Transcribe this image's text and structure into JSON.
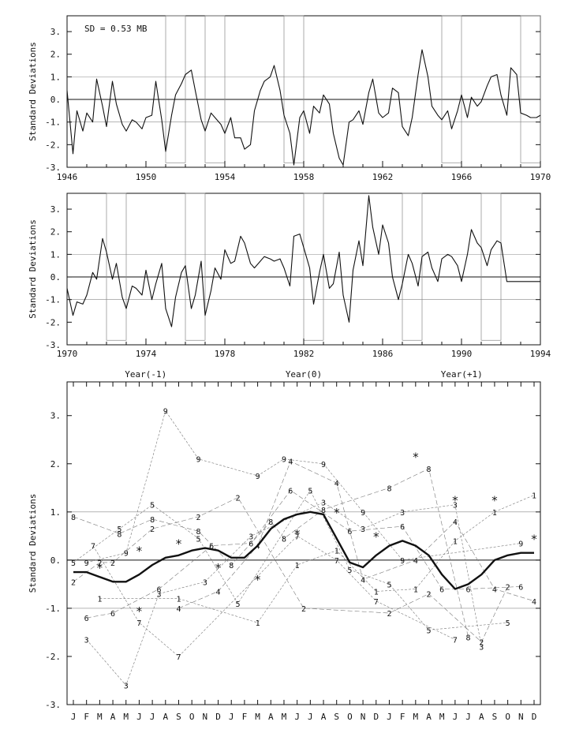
{
  "chart_data": [
    {
      "type": "line",
      "annotation": "SD = 0.53 MB",
      "ylabel": "Standard Deviations",
      "xlim": [
        1946,
        1970
      ],
      "ylim": [
        -3,
        3.7
      ],
      "xticks": [
        "1946",
        "1950",
        "1954",
        "1958",
        "1962",
        "1966",
        "1970"
      ],
      "yticks": [
        "3.",
        "2.",
        "1.",
        "0.",
        "-1.",
        "-2.",
        "-3."
      ],
      "reference_lines": [
        1,
        -1
      ],
      "event_windows": [
        [
          1951.0,
          1952.0
        ],
        [
          1953.0,
          1954.0
        ],
        [
          1957.0,
          1958.0
        ],
        [
          1965.0,
          1966.0
        ],
        [
          1969.0,
          1970.0
        ]
      ],
      "series": [
        {
          "x": [
            1946.0,
            1946.3,
            1946.5,
            1946.8,
            1947.0,
            1947.3,
            1947.5,
            1947.8,
            1948.0,
            1948.3,
            1948.5,
            1948.8,
            1949.0,
            1949.3,
            1949.5,
            1949.8,
            1950.0,
            1950.3,
            1950.5,
            1950.8,
            1951.0,
            1951.3,
            1951.5,
            1951.8,
            1952.0,
            1952.3,
            1952.5,
            1952.8,
            1953.0,
            1953.3,
            1953.5,
            1953.8,
            1954.0,
            1954.3,
            1954.5,
            1954.8,
            1955.0,
            1955.3,
            1955.5,
            1955.8,
            1956.0,
            1956.3,
            1956.5,
            1956.8,
            1957.0,
            1957.3,
            1957.5,
            1957.8,
            1958.0,
            1958.3,
            1958.5,
            1958.8,
            1959.0,
            1959.3,
            1959.5,
            1959.8,
            1960.0,
            1960.3,
            1960.5,
            1960.8,
            1961.0,
            1961.3,
            1961.5,
            1961.8,
            1962.0,
            1962.3,
            1962.5,
            1962.8,
            1963.0,
            1963.3,
            1963.5,
            1963.8,
            1964.0,
            1964.3,
            1964.5,
            1964.8,
            1965.0,
            1965.3,
            1965.5,
            1965.8,
            1966.0,
            1966.3,
            1966.5,
            1966.8,
            1967.0,
            1967.3,
            1967.5,
            1967.8,
            1968.0,
            1968.3,
            1968.5,
            1968.8,
            1969.0,
            1969.3,
            1969.5,
            1969.8,
            1970.0
          ],
          "values": [
            0.4,
            -2.4,
            -0.5,
            -1.4,
            -0.6,
            -1.0,
            0.9,
            -0.3,
            -1.2,
            0.8,
            -0.2,
            -1.1,
            -1.4,
            -0.9,
            -1.0,
            -1.3,
            -0.8,
            -0.7,
            0.8,
            -0.9,
            -2.3,
            -0.7,
            0.2,
            0.7,
            1.1,
            1.3,
            0.4,
            -0.9,
            -1.4,
            -0.6,
            -0.8,
            -1.1,
            -1.5,
            -0.8,
            -1.7,
            -1.7,
            -2.2,
            -2.0,
            -0.5,
            0.4,
            0.8,
            1.0,
            1.5,
            0.4,
            -0.7,
            -1.5,
            -2.9,
            -0.8,
            -0.5,
            -1.5,
            -0.3,
            -0.6,
            0.2,
            -0.2,
            -1.5,
            -2.6,
            -2.9,
            -1.0,
            -0.9,
            -0.5,
            -1.1,
            0.3,
            0.9,
            -0.6,
            -0.8,
            -0.6,
            0.5,
            0.3,
            -1.2,
            -1.6,
            -0.8,
            1.1,
            2.2,
            1.0,
            -0.3,
            -0.7,
            -0.9,
            -0.5,
            -1.3,
            -0.5,
            0.2,
            -0.8,
            0.1,
            -0.3,
            -0.1,
            0.6,
            1.0,
            1.1,
            0.2,
            -0.7,
            1.4,
            1.1,
            -0.6,
            -0.7,
            -0.8,
            -0.8,
            -0.7
          ]
        }
      ]
    },
    {
      "type": "line",
      "ylabel": "Standard Deviations",
      "xlim": [
        1970,
        1994
      ],
      "ylim": [
        -3,
        3.7
      ],
      "xticks": [
        "1970",
        "1974",
        "1978",
        "1982",
        "1986",
        "1990",
        "1994"
      ],
      "yticks": [
        "3.",
        "2.",
        "1.",
        "0.",
        "-1.",
        "-2.",
        "-3."
      ],
      "reference_lines": [
        1,
        -1
      ],
      "event_windows": [
        [
          1972.0,
          1973.0
        ],
        [
          1976.0,
          1977.0
        ],
        [
          1982.0,
          1983.0
        ],
        [
          1987.0,
          1988.0
        ],
        [
          1991.0,
          1992.0
        ]
      ],
      "series": [
        {
          "x": [
            1970.0,
            1970.3,
            1970.5,
            1970.8,
            1971.0,
            1971.3,
            1971.5,
            1971.8,
            1972.0,
            1972.3,
            1972.5,
            1972.8,
            1973.0,
            1973.3,
            1973.5,
            1973.8,
            1974.0,
            1974.3,
            1974.5,
            1974.8,
            1975.0,
            1975.3,
            1975.5,
            1975.8,
            1976.0,
            1976.3,
            1976.5,
            1976.8,
            1977.0,
            1977.3,
            1977.5,
            1977.8,
            1978.0,
            1978.3,
            1978.5,
            1978.8,
            1979.0,
            1979.3,
            1979.5,
            1979.8,
            1980.0,
            1980.3,
            1980.5,
            1980.8,
            1981.0,
            1981.3,
            1981.5,
            1981.8,
            1982.0,
            1982.3,
            1982.5,
            1982.8,
            1983.0,
            1983.3,
            1983.5,
            1983.8,
            1984.0,
            1984.3,
            1984.5,
            1984.8,
            1985.0,
            1985.3,
            1985.5,
            1985.8,
            1986.0,
            1986.3,
            1986.5,
            1986.8,
            1987.0,
            1987.3,
            1987.5,
            1987.8,
            1988.0,
            1988.3,
            1988.5,
            1988.8,
            1989.0,
            1989.3,
            1989.5,
            1989.8,
            1990.0,
            1990.3,
            1990.5,
            1990.8,
            1991.0,
            1991.3,
            1991.5,
            1991.8,
            1992.0,
            1992.3,
            1992.5,
            1992.8,
            1993.0,
            1993.3,
            1993.5,
            1993.8,
            1994.0
          ],
          "values": [
            -0.5,
            -1.7,
            -1.1,
            -1.2,
            -0.8,
            0.2,
            -0.1,
            1.7,
            1.1,
            -0.1,
            0.6,
            -0.9,
            -1.4,
            -0.4,
            -0.5,
            -0.8,
            0.3,
            -1.0,
            -0.3,
            0.6,
            -1.4,
            -2.2,
            -0.9,
            0.2,
            0.5,
            -1.4,
            -0.8,
            0.7,
            -1.7,
            -0.6,
            0.4,
            -0.1,
            1.2,
            0.6,
            0.7,
            1.8,
            1.5,
            0.6,
            0.4,
            0.7,
            0.9,
            0.8,
            0.7,
            0.8,
            0.4,
            -0.4,
            1.8,
            1.9,
            1.3,
            0.4,
            -1.2,
            0.2,
            1.0,
            -0.5,
            -0.3,
            1.1,
            -0.8,
            -2.0,
            0.3,
            1.6,
            0.5,
            3.6,
            2.2,
            1.0,
            2.3,
            1.5,
            0.0,
            -1.0,
            -0.3,
            1.0,
            0.6,
            -0.4,
            0.9,
            1.1,
            0.4,
            -0.2,
            0.8,
            1.0,
            0.9,
            0.5,
            -0.2,
            1.0,
            2.1,
            1.5,
            1.3,
            0.5,
            1.2,
            1.6,
            1.5,
            -0.2,
            -0.2,
            -0.2,
            -0.2,
            -0.2,
            -0.2,
            -0.2,
            -0.2
          ]
        }
      ]
    },
    {
      "type": "line",
      "ylabel": "Standard Deviations",
      "top_labels": [
        "Year(-1)",
        "Year(0)",
        "Year(+1)"
      ],
      "ylim": [
        -3,
        3.7
      ],
      "yticks": [
        "3.",
        "2.",
        "1.",
        "0.",
        "-1.",
        "-2.",
        "-3."
      ],
      "categories": [
        "J",
        "F",
        "M",
        "A",
        "M",
        "J",
        "J",
        "A",
        "S",
        "O",
        "N",
        "D",
        "J",
        "F",
        "M",
        "A",
        "M",
        "J",
        "J",
        "A",
        "S",
        "O",
        "N",
        "D",
        "J",
        "F",
        "M",
        "A",
        "M",
        "J",
        "J",
        "A",
        "S",
        "O",
        "N",
        "D"
      ],
      "reference_lines": [
        1,
        -1
      ],
      "composite_mean": [
        -0.25,
        -0.25,
        -0.35,
        -0.45,
        -0.45,
        -0.3,
        -0.1,
        0.05,
        0.1,
        0.2,
        0.25,
        0.2,
        0.05,
        0.05,
        0.3,
        0.65,
        0.85,
        0.95,
        1.0,
        0.95,
        0.45,
        -0.05,
        -0.15,
        0.1,
        0.3,
        0.4,
        0.3,
        0.1,
        -0.3,
        -0.6,
        -0.5,
        -0.3,
        0.0,
        0.1,
        0.15,
        0.15
      ],
      "marker_points": [
        [
          2,
          -0.1
        ],
        [
          5,
          0.25
        ],
        [
          5,
          -1.0
        ],
        [
          8,
          0.4
        ],
        [
          11,
          -0.1
        ],
        [
          14,
          -0.35
        ],
        [
          17,
          0.6
        ],
        [
          20,
          1.05
        ],
        [
          23,
          0.55
        ],
        [
          26,
          2.2
        ],
        [
          29,
          1.3
        ],
        [
          32,
          1.3
        ],
        [
          35,
          0.5
        ]
      ],
      "series_labels": [
        [
          "5",
          0,
          -0.05
        ],
        [
          "9",
          1,
          -0.05
        ],
        [
          "2",
          2,
          -0.05
        ],
        [
          "7",
          1.5,
          0.3
        ],
        [
          "6",
          1,
          -1.2
        ],
        [
          "3",
          1,
          -1.65
        ],
        [
          "1",
          2,
          -0.8
        ],
        [
          "8",
          0,
          0.9
        ],
        [
          "2",
          0,
          -0.45
        ],
        [
          "6",
          3,
          -1.1
        ],
        [
          "7",
          5,
          -1.3
        ],
        [
          "9",
          4,
          0.15
        ],
        [
          "8",
          3.5,
          0.55
        ],
        [
          "5",
          3.5,
          0.65
        ],
        [
          "2",
          3,
          -0.05
        ],
        [
          "3",
          4,
          -2.6
        ],
        [
          "9",
          7,
          3.1
        ],
        [
          "5",
          6,
          1.15
        ],
        [
          "8",
          6,
          0.85
        ],
        [
          "2",
          6,
          0.65
        ],
        [
          "6",
          6.5,
          -0.6
        ],
        [
          "3",
          6.5,
          -0.7
        ],
        [
          "1",
          8,
          -0.8
        ],
        [
          "4",
          8,
          -1.0
        ],
        [
          "7",
          8,
          -2.0
        ],
        [
          "9",
          9.5,
          2.1
        ],
        [
          "2",
          9.5,
          0.9
        ],
        [
          "8",
          9.5,
          0.6
        ],
        [
          "5",
          9.5,
          0.45
        ],
        [
          "6",
          10.5,
          0.3
        ],
        [
          "3",
          10,
          -0.45
        ],
        [
          "4",
          11,
          -0.65
        ],
        [
          "2",
          12.5,
          1.3
        ],
        [
          "5",
          12.5,
          -0.9
        ],
        [
          "8",
          12,
          -0.1
        ],
        [
          "9",
          14,
          1.75
        ],
        [
          "3",
          13.5,
          0.5
        ],
        [
          "6",
          13.5,
          0.35
        ],
        [
          "4",
          14,
          0.3
        ],
        [
          "1",
          14,
          -1.3
        ],
        [
          "9",
          16,
          2.1
        ],
        [
          "4",
          16.5,
          2.05
        ],
        [
          "6",
          16.5,
          1.45
        ],
        [
          "8",
          15,
          0.8
        ],
        [
          "8",
          16,
          0.45
        ],
        [
          "7",
          17,
          0.5
        ],
        [
          "1",
          17,
          -0.1
        ],
        [
          "2",
          17.5,
          -1.0
        ],
        [
          "5",
          18,
          1.45
        ],
        [
          "8",
          19,
          1.05
        ],
        [
          "3",
          19,
          1.2
        ],
        [
          "9",
          19,
          2.0
        ],
        [
          "4",
          20,
          1.6
        ],
        [
          "1",
          20,
          0.2
        ],
        [
          "7",
          20,
          0.0
        ],
        [
          "6",
          21,
          0.6
        ],
        [
          "5",
          21,
          -0.2
        ],
        [
          "9",
          22,
          1.0
        ],
        [
          "3",
          22,
          0.65
        ],
        [
          "4",
          22,
          -0.4
        ],
        [
          "1",
          23,
          -0.65
        ],
        [
          "7",
          23,
          -0.85
        ],
        [
          "2",
          24,
          -1.1
        ],
        [
          "5",
          24,
          -0.5
        ],
        [
          "8",
          24,
          1.5
        ],
        [
          "3",
          25,
          1.0
        ],
        [
          "6",
          25,
          0.7
        ],
        [
          "9",
          25,
          0.0
        ],
        [
          "4",
          26,
          0.0
        ],
        [
          "1",
          26,
          -0.6
        ],
        [
          "2",
          27,
          -0.7
        ],
        [
          "8",
          27,
          1.9
        ],
        [
          "5",
          27,
          -1.45
        ],
        [
          "6",
          28,
          -0.6
        ],
        [
          "3",
          29,
          1.15
        ],
        [
          "4",
          29,
          0.8
        ],
        [
          "1",
          29,
          0.4
        ],
        [
          "7",
          29,
          -1.65
        ],
        [
          "8",
          30,
          -1.6
        ],
        [
          "3",
          31,
          -1.8
        ],
        [
          "2",
          31,
          -1.7
        ],
        [
          "6",
          30,
          -0.6
        ],
        [
          "4",
          32,
          -0.6
        ],
        [
          "1",
          32,
          1.0
        ],
        [
          "2",
          33,
          -0.55
        ],
        [
          "5",
          33,
          -1.3
        ],
        [
          "6",
          34,
          -0.55
        ],
        [
          "9",
          34,
          0.35
        ],
        [
          "4",
          35,
          -0.85
        ],
        [
          "1",
          35,
          1.35
        ]
      ]
    }
  ]
}
